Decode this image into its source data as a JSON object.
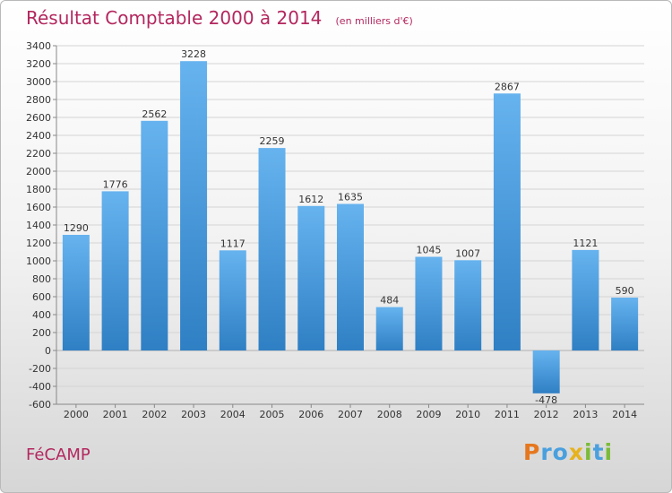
{
  "chart_data": {
    "type": "bar",
    "title": "Résultat Comptable 2000 à 2014",
    "subtitle": "(en milliers d'€)",
    "categories": [
      "2000",
      "2001",
      "2002",
      "2003",
      "2004",
      "2005",
      "2006",
      "2007",
      "2008",
      "2009",
      "2010",
      "2011",
      "2012",
      "2013",
      "2014"
    ],
    "values": [
      1290,
      1776,
      2562,
      3228,
      1117,
      2259,
      1612,
      1635,
      484,
      1045,
      1007,
      2867,
      -478,
      1121,
      590
    ],
    "ylim": [
      -600,
      3400
    ],
    "yticks": [
      -600,
      -400,
      -200,
      0,
      200,
      400,
      600,
      800,
      1000,
      1200,
      1400,
      1600,
      1800,
      2000,
      2200,
      2400,
      2600,
      2800,
      3000,
      3200,
      3400
    ],
    "grid": "horizontal",
    "legend": "none",
    "bar_color": "#3a8fd6"
  },
  "commune": "FéCAMP",
  "brand": {
    "letters": [
      "P",
      "r",
      "o",
      "x",
      "i",
      "t",
      "i"
    ],
    "colors": [
      "#e6771e",
      "#4aa0de",
      "#4aa0de",
      "#e6b21e",
      "#7cbb3a",
      "#4aa0de",
      "#7cbb3a"
    ]
  },
  "colors": {
    "title": "#b3275e",
    "bar_top": "#66b3ef",
    "bar_bottom": "#2f7fc4"
  }
}
